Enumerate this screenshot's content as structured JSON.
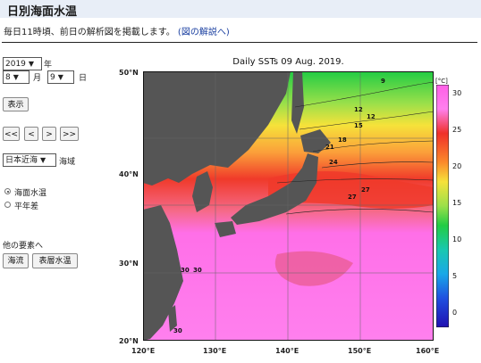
{
  "header": {
    "title": "日別海面水温"
  },
  "description": {
    "text": "毎日11時頃、前日の解析図を掲載します。",
    "link": "(図の解説へ)"
  },
  "controls": {
    "year": {
      "value": "2019",
      "unit": "年"
    },
    "month": {
      "value": "8",
      "unit": "月"
    },
    "day": {
      "value": "9",
      "unit": "日"
    },
    "show_button": "表示",
    "nav_buttons": [
      "<<",
      "<",
      ">",
      ">>"
    ],
    "region": {
      "value": "日本近海",
      "unit": "海域"
    },
    "radios": [
      {
        "label": "海面水温",
        "checked": true
      },
      {
        "label": "平年差",
        "checked": false
      }
    ],
    "other_heading": "他の要素へ",
    "other_buttons": [
      "海流",
      "表層水温"
    ]
  },
  "map": {
    "title": "Daily SSTs 09 Aug. 2019.",
    "lat_labels": [
      "50°N",
      "40°N",
      "30°N",
      "20°N"
    ],
    "lon_labels": [
      "120°E",
      "130°E",
      "140°E",
      "150°E",
      "160°E"
    ],
    "contour_labels": [
      "9",
      "12",
      "12",
      "15",
      "18",
      "21",
      "24",
      "27",
      "27",
      "30",
      "30",
      "30"
    ],
    "colorbar": {
      "unit": "[°C]",
      "ticks": [
        "30",
        "25",
        "20",
        "15",
        "10",
        "5",
        "0"
      ]
    },
    "colors": {
      "land": "#555555",
      "warm": "#ff6fe8",
      "hot": "#f03a2a",
      "cold": "#1a1ad0"
    }
  }
}
